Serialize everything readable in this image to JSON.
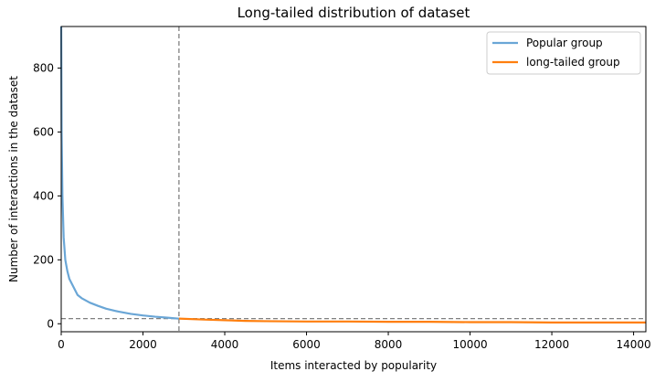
{
  "chart_data": {
    "type": "line",
    "title": "Long-tailed distribution of dataset",
    "xlabel": "Items interacted by popularity",
    "ylabel": "Number of interactions in the dataset",
    "xlim": [
      0,
      14300
    ],
    "ylim": [
      -25,
      930
    ],
    "xticks": [
      0,
      2000,
      4000,
      6000,
      8000,
      10000,
      12000,
      14000
    ],
    "yticks": [
      0,
      200,
      400,
      600,
      800
    ],
    "grid": false,
    "legend_position": "top-right",
    "series": [
      {
        "name": "Popular group",
        "color": "#6aa6d6",
        "x": [
          0,
          10,
          30,
          60,
          100,
          150,
          200,
          300,
          400,
          500,
          700,
          900,
          1100,
          1400,
          1700,
          2000,
          2300,
          2600,
          2880
        ],
        "y": [
          930,
          600,
          400,
          270,
          200,
          165,
          140,
          115,
          90,
          80,
          66,
          56,
          47,
          38,
          31,
          26,
          22,
          19,
          16
        ]
      },
      {
        "name": "long-tailed group",
        "color": "#ff7f0e",
        "x": [
          2880,
          3500,
          4000,
          4500,
          5000,
          6000,
          7000,
          8000,
          9000,
          10000,
          11000,
          12000,
          13000,
          14300
        ],
        "y": [
          16,
          13,
          11,
          9,
          8,
          7,
          7,
          6,
          6,
          5,
          5,
          4,
          4,
          4
        ]
      }
    ],
    "reference_lines": {
      "vertical_x": 2880,
      "horizontal_y": 16,
      "color": "#808080"
    }
  }
}
